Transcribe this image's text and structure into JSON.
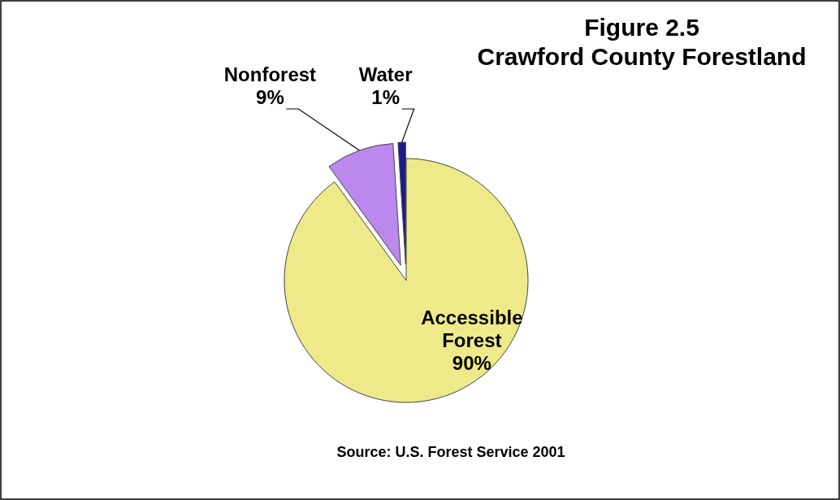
{
  "chart_data": {
    "type": "pie",
    "title": "Figure 2.5\nCrawford County Forestland",
    "categories": [
      "Accessible Forest",
      "Nonforest",
      "Water"
    ],
    "values": [
      90,
      9,
      1
    ],
    "value_labels": [
      "90%",
      "9%",
      "1%"
    ],
    "colors": [
      "#eeea8a",
      "#bb88ee",
      "#1a1a8c"
    ],
    "annotations": [
      "Source: U.S. Forest Service 2001"
    ]
  }
}
